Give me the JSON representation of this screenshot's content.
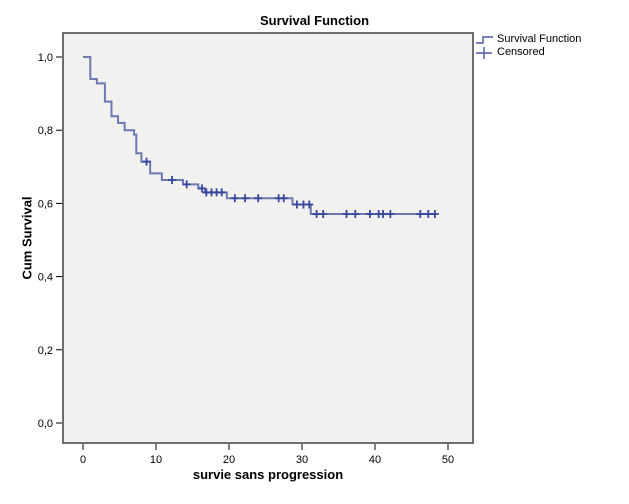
{
  "figure": {
    "title": "Survival Function",
    "x_axis": {
      "label": "survie sans progression"
    },
    "y_axis": {
      "label": "Cum Survival"
    },
    "legend": {
      "items": [
        {
          "label": "Survival Function",
          "icon": "step-line-icon"
        },
        {
          "label": "Censored",
          "icon": "plus-cross-icon"
        }
      ]
    }
  },
  "chart_data": {
    "type": "line",
    "subtype": "kaplan-meier-step-function",
    "title": "Survival Function",
    "xlabel": "survie sans progression",
    "ylabel": "Cum Survival",
    "xlim": [
      -2.7,
      53.4
    ],
    "ylim": [
      -0.055,
      1.065
    ],
    "grid": false,
    "legend_position": "outside-top-right",
    "xticks": [
      0,
      10,
      20,
      30,
      40,
      50
    ],
    "xtick_labels": [
      "0",
      "10",
      "20",
      "30",
      "40",
      "50"
    ],
    "ytick_values": [
      0.0,
      0.2,
      0.4,
      0.6,
      0.8,
      1.0
    ],
    "ytick_labels": [
      "0,0",
      "0,2",
      "0,4",
      "0,6",
      "0,8",
      "1,0"
    ],
    "series": [
      {
        "name": "Survival Function",
        "type": "step",
        "steps": [
          [
            0.0,
            1.0
          ],
          [
            1.0,
            0.94
          ],
          [
            1.9,
            0.928
          ],
          [
            3.0,
            0.878
          ],
          [
            3.9,
            0.838
          ],
          [
            4.8,
            0.82
          ],
          [
            5.7,
            0.8
          ],
          [
            7.0,
            0.788
          ],
          [
            7.3,
            0.737
          ],
          [
            8.0,
            0.714
          ],
          [
            9.2,
            0.682
          ],
          [
            10.8,
            0.664
          ],
          [
            13.7,
            0.652
          ],
          [
            15.8,
            0.641
          ],
          [
            16.7,
            0.63
          ],
          [
            19.7,
            0.614
          ],
          [
            28.7,
            0.597
          ],
          [
            31.2,
            0.571
          ]
        ],
        "end_time": 48.3
      },
      {
        "name": "Censored",
        "type": "marker-plus",
        "points": [
          [
            8.7,
            0.714
          ],
          [
            12.2,
            0.664
          ],
          [
            14.2,
            0.652
          ],
          [
            16.3,
            0.641
          ],
          [
            16.9,
            0.63
          ],
          [
            17.6,
            0.63
          ],
          [
            18.3,
            0.63
          ],
          [
            19.0,
            0.63
          ],
          [
            20.8,
            0.614
          ],
          [
            22.2,
            0.614
          ],
          [
            24.0,
            0.614
          ],
          [
            26.8,
            0.614
          ],
          [
            27.5,
            0.614
          ],
          [
            29.3,
            0.597
          ],
          [
            30.2,
            0.597
          ],
          [
            31.0,
            0.597
          ],
          [
            32.0,
            0.571
          ],
          [
            32.9,
            0.571
          ],
          [
            36.1,
            0.571
          ],
          [
            37.3,
            0.571
          ],
          [
            39.3,
            0.571
          ],
          [
            40.5,
            0.571
          ],
          [
            41.1,
            0.571
          ],
          [
            42.1,
            0.571
          ],
          [
            46.2,
            0.571
          ],
          [
            47.3,
            0.571
          ],
          [
            48.2,
            0.571
          ]
        ]
      }
    ],
    "colors": {
      "line": "#6b7ab0",
      "censor_marker": "#37479c",
      "plot_background": "#f1f1ef",
      "plot_border": "#6e6e6e",
      "tick": "#000000",
      "text": "#000000"
    }
  }
}
